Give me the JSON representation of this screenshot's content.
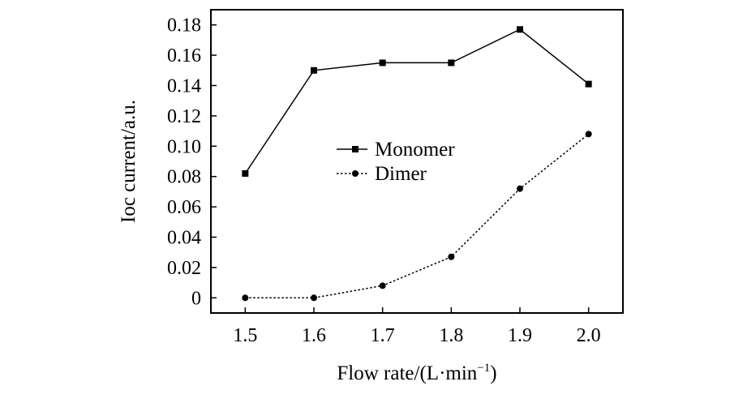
{
  "chart_data": {
    "type": "line",
    "title": "",
    "xlabel": "Flow rate/(L·min",
    "xlabel_superscript": "−1",
    "xlabel_suffix": ")",
    "ylabel": "Ioc current/a.u.",
    "x": [
      1.5,
      1.6,
      1.7,
      1.8,
      1.9,
      2.0
    ],
    "x_tick_labels": [
      "1.5",
      "1.6",
      "1.7",
      "1.8",
      "1.9",
      "2.0"
    ],
    "xlim": [
      1.45,
      2.05
    ],
    "ylim": [
      -0.01,
      0.19
    ],
    "y_ticks": [
      0,
      0.02,
      0.04,
      0.06,
      0.08,
      0.1,
      0.12,
      0.14,
      0.16,
      0.18
    ],
    "y_tick_labels": [
      "0",
      "0.02",
      "0.04",
      "0.06",
      "0.08",
      "0.10",
      "0.12",
      "0.14",
      "0.16",
      "0.18"
    ],
    "grid": false,
    "legend_position": "center",
    "series": [
      {
        "name": "Monomer",
        "marker": "square",
        "line_style": "solid",
        "color": "#000000",
        "values": [
          0.082,
          0.15,
          0.155,
          0.155,
          0.177,
          0.141
        ]
      },
      {
        "name": "Dimer",
        "marker": "circle",
        "line_style": "dotted",
        "color": "#000000",
        "values": [
          0.0,
          0.0,
          0.008,
          0.027,
          0.072,
          0.108
        ]
      }
    ]
  }
}
